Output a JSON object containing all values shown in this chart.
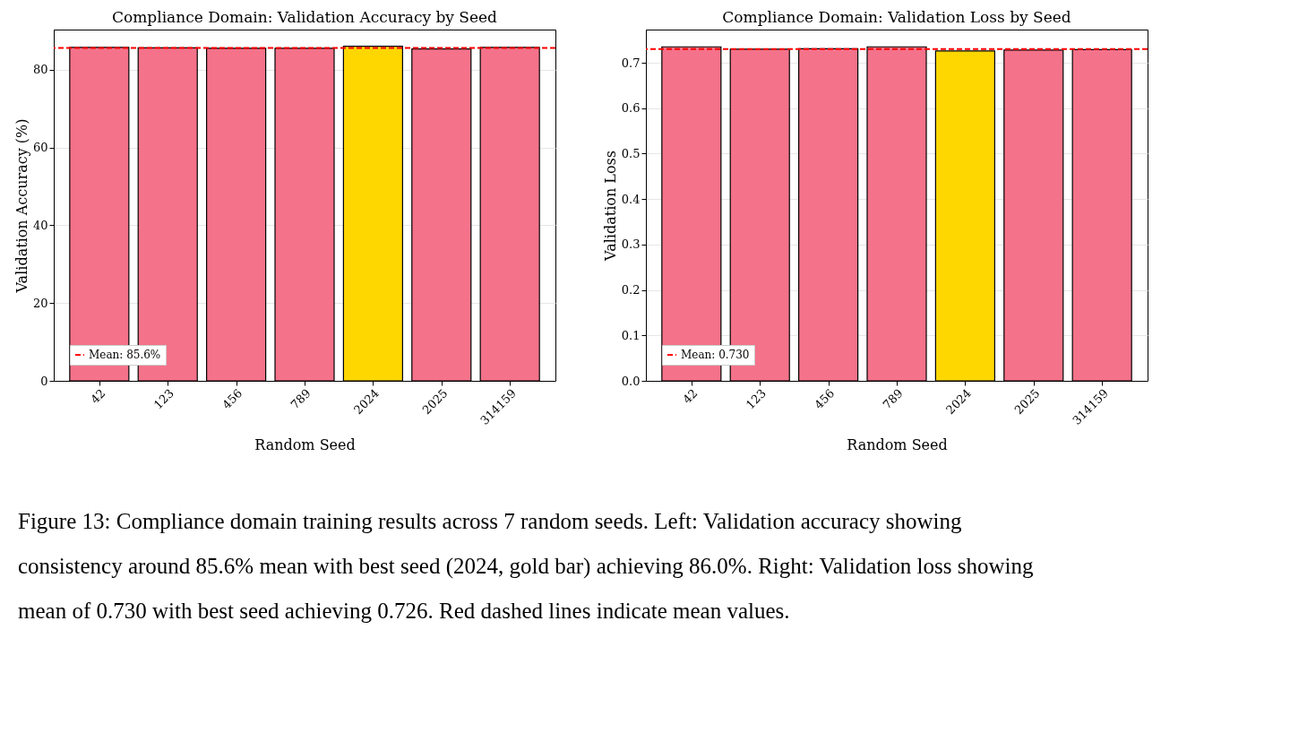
{
  "chart_data": [
    {
      "type": "bar",
      "title": "Compliance Domain: Validation Accuracy by Seed",
      "xlabel": "Random Seed",
      "ylabel": "Validation Accuracy (%)",
      "categories": [
        "42",
        "123",
        "456",
        "789",
        "2024",
        "2025",
        "314159"
      ],
      "values": [
        85.7,
        85.6,
        85.5,
        85.5,
        86.0,
        85.3,
        85.7
      ],
      "colors": [
        "#f4728a",
        "#f4728a",
        "#f4728a",
        "#f4728a",
        "#ffd700",
        "#f4728a",
        "#f4728a"
      ],
      "ylim": [
        0,
        90.3
      ],
      "yticks": [
        0,
        20,
        40,
        60,
        80
      ],
      "grid": "y",
      "legend": "bottom left",
      "ref_lines": [
        {
          "axis": "y",
          "value": 85.6,
          "label": "Mean: 85.6%",
          "color": "#ff0000",
          "line_style": "dashed"
        }
      ]
    },
    {
      "type": "bar",
      "title": "Compliance Domain: Validation Loss by Seed",
      "xlabel": "Random Seed",
      "ylabel": "Validation Loss",
      "categories": [
        "42",
        "123",
        "456",
        "789",
        "2024",
        "2025",
        "314159"
      ],
      "values": [
        0.735,
        0.73,
        0.731,
        0.735,
        0.726,
        0.728,
        0.729
      ],
      "colors": [
        "#f4728a",
        "#f4728a",
        "#f4728a",
        "#f4728a",
        "#ffd700",
        "#f4728a",
        "#f4728a"
      ],
      "ylim": [
        0,
        0.773
      ],
      "yticks": [
        {
          "value": 0,
          "label": "0.0"
        },
        0.1,
        0.2,
        0.3,
        0.4,
        0.5,
        0.6,
        0.7
      ],
      "grid": "y",
      "legend": "bottom left",
      "ref_lines": [
        {
          "axis": "y",
          "value": 0.73,
          "label": "Mean: 0.730",
          "color": "#ff0000",
          "line_style": "dashed"
        }
      ],
      "annotations": [
        "Figure 13: Compliance domain training results across 7 random seeds. Left: Validation accuracy showing consistency around 85.6% mean with best seed (2024, gold bar) achieving 86.0%. Right: Validation loss showing mean of 0.730 with best seed achieving 0.726. Red dashed lines indicate mean values."
      ]
    }
  ]
}
